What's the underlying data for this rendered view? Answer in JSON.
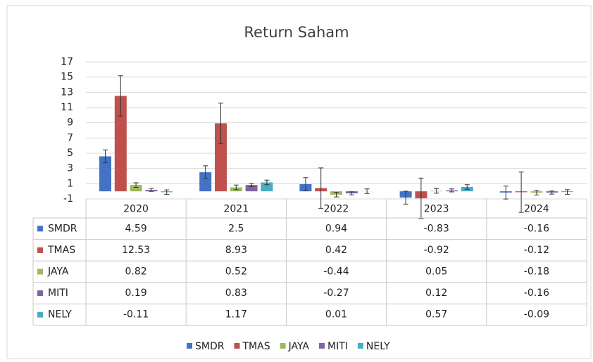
{
  "chart_data": {
    "type": "bar",
    "title": "Return Saham",
    "categories": [
      "2020",
      "2021",
      "2022",
      "2023",
      "2024"
    ],
    "series": [
      {
        "name": "SMDR",
        "color": "#4472c4",
        "values": [
          4.59,
          2.5,
          0.94,
          -0.83,
          -0.16
        ],
        "errors": [
          0.85,
          0.85,
          0.85,
          0.85,
          0.85
        ]
      },
      {
        "name": "TMAS",
        "color": "#c0504d",
        "values": [
          12.53,
          8.93,
          0.42,
          -0.92,
          -0.12
        ],
        "errors": [
          2.65,
          2.65,
          2.65,
          2.65,
          2.65
        ]
      },
      {
        "name": "JAYA",
        "color": "#9bbb59",
        "values": [
          0.82,
          0.52,
          -0.44,
          0.05,
          -0.18
        ],
        "errors": [
          0.3,
          0.3,
          0.3,
          0.3,
          0.3
        ]
      },
      {
        "name": "MITI",
        "color": "#8064a2",
        "values": [
          0.19,
          0.83,
          -0.27,
          0.12,
          -0.16
        ],
        "errors": [
          0.2,
          0.2,
          0.2,
          0.2,
          0.2
        ]
      },
      {
        "name": "NELY",
        "color": "#4bacc6",
        "values": [
          -0.11,
          1.17,
          0.01,
          0.57,
          -0.09
        ],
        "errors": [
          0.3,
          0.3,
          0.3,
          0.3,
          0.3
        ]
      }
    ],
    "ylim": [
      -1,
      17
    ],
    "yticks": [
      -1,
      1,
      3,
      5,
      7,
      9,
      11,
      13,
      15,
      17
    ],
    "grid": true,
    "legend": "bottom"
  }
}
